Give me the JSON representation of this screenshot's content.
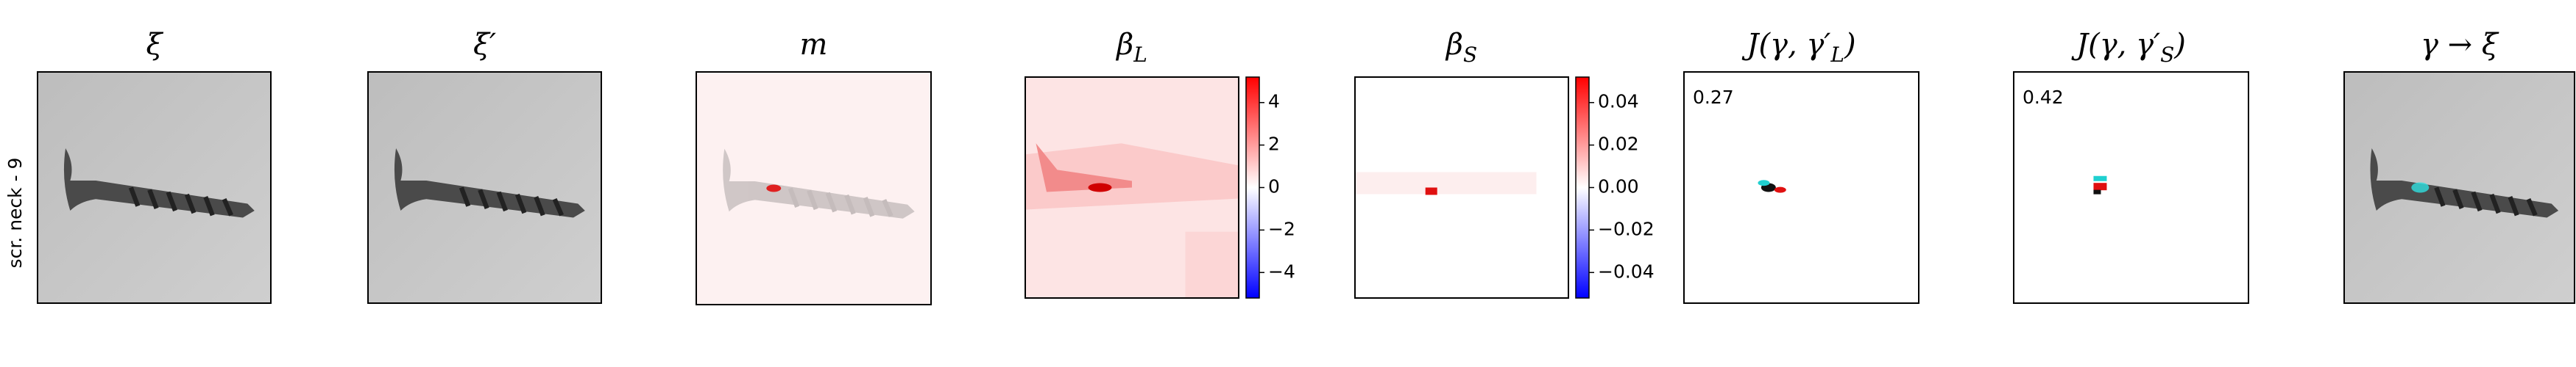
{
  "row_label": "scr. neck - 9",
  "panels": [
    {
      "title": "ξ"
    },
    {
      "title": "ξ′"
    },
    {
      "title": "m"
    },
    {
      "title": "β",
      "title_sub": "L",
      "colorbar": {
        "lim": [
          -5.2,
          5.2
        ],
        "ticks": [
          4,
          2,
          {
            "value": 0,
            "label": "0"
          },
          {
            "value": -2,
            "label": "−2"
          },
          {
            "value": -4,
            "label": "−4"
          }
        ]
      }
    },
    {
      "title": "β",
      "title_sub": "S",
      "colorbar": {
        "lim": [
          -0.052,
          0.052
        ],
        "ticks": [
          0.04,
          0.02,
          {
            "value": 0,
            "label": "0.00"
          },
          {
            "value": -0.02,
            "label": "−0.02"
          },
          {
            "value": -0.04,
            "label": "−0.04"
          }
        ]
      }
    },
    {
      "title": "J(γ, γ′",
      "title_sub": "L",
      "title_end": ")",
      "score": 0.27
    },
    {
      "title": "J(γ, γ′",
      "title_sub": "S",
      "title_end": ")",
      "score": 0.42
    },
    {
      "title": "γ → ξ"
    }
  ]
}
